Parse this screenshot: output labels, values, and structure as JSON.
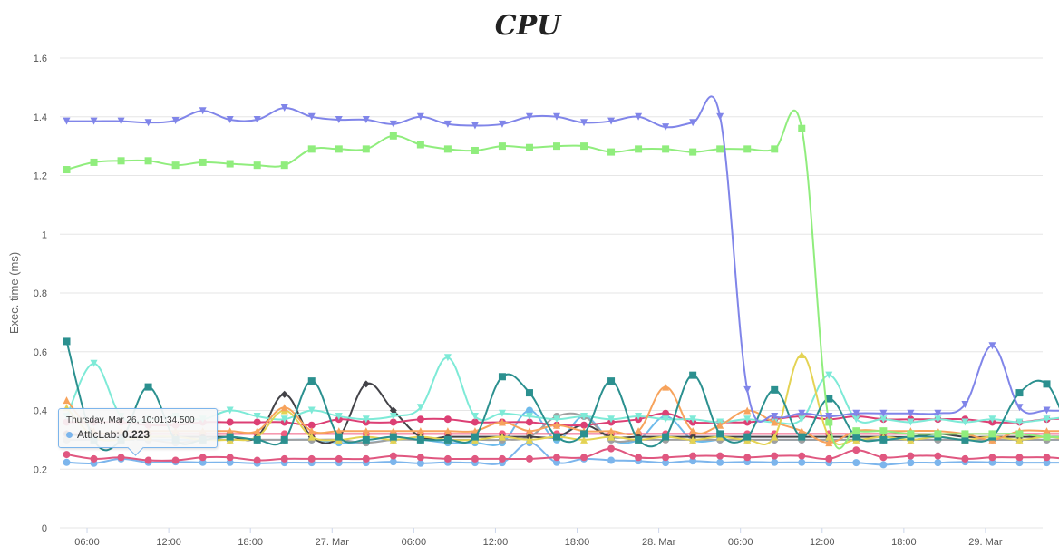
{
  "chart_data": {
    "type": "line",
    "title": "CPU",
    "ylabel": "Exec. time (ms)",
    "xlabel": "",
    "ylim": [
      0,
      1.6
    ],
    "yticks": [
      "0",
      "0.2",
      "0.4",
      "0.6",
      "0.8",
      "1",
      "1.2",
      "1.4",
      "1.6"
    ],
    "xticks": [
      "06:00",
      "12:00",
      "18:00",
      "27. Mar",
      "06:00",
      "12:00",
      "18:00",
      "28. Mar",
      "06:00",
      "12:00",
      "18:00",
      "29. Mar"
    ],
    "x_start_hour": 4.5,
    "x_step_hours": 2,
    "grid": true,
    "series": [
      {
        "color": "#8085e9",
        "marker": "triangle-down",
        "values": [
          1.385,
          1.385,
          1.385,
          1.38,
          1.387,
          1.42,
          1.39,
          1.39,
          1.43,
          1.4,
          1.39,
          1.39,
          1.375,
          1.4,
          1.375,
          1.37,
          1.375,
          1.4,
          1.4,
          1.38,
          1.385,
          1.4,
          1.365,
          1.38,
          1.4,
          0.47,
          0.38,
          0.39,
          0.38,
          0.39,
          0.39,
          0.39,
          0.39,
          0.42,
          0.62,
          0.41,
          0.4,
          0.4,
          0.4,
          0.4
        ]
      },
      {
        "color": "#90ed7d",
        "marker": "square",
        "values": [
          1.22,
          1.245,
          1.25,
          1.25,
          1.235,
          1.245,
          1.24,
          1.235,
          1.235,
          1.29,
          1.29,
          1.29,
          1.335,
          1.305,
          1.29,
          1.285,
          1.3,
          1.295,
          1.3,
          1.3,
          1.28,
          1.29,
          1.29,
          1.28,
          1.29,
          1.29,
          1.29,
          1.36,
          0.36,
          0.33,
          0.33,
          0.32,
          0.32,
          0.32,
          0.32,
          0.32,
          0.31,
          0.31,
          0.31,
          0.31
        ]
      },
      {
        "color": "#2b908f",
        "marker": "square",
        "values": [
          0.635,
          0.3,
          0.3,
          0.48,
          0.3,
          0.3,
          0.31,
          0.3,
          0.3,
          0.5,
          0.31,
          0.3,
          0.31,
          0.3,
          0.3,
          0.31,
          0.515,
          0.46,
          0.31,
          0.32,
          0.5,
          0.3,
          0.31,
          0.52,
          0.32,
          0.31,
          0.47,
          0.31,
          0.44,
          0.31,
          0.3,
          0.31,
          0.31,
          0.3,
          0.31,
          0.46,
          0.49,
          0.31,
          0.3,
          0.3
        ]
      },
      {
        "color": "#f7a35c",
        "marker": "triangle",
        "values": [
          0.435,
          0.33,
          0.33,
          0.33,
          0.33,
          0.33,
          0.33,
          0.33,
          0.41,
          0.33,
          0.33,
          0.33,
          0.33,
          0.33,
          0.33,
          0.33,
          0.36,
          0.33,
          0.35,
          0.33,
          0.33,
          0.33,
          0.48,
          0.33,
          0.35,
          0.4,
          0.36,
          0.33,
          0.29,
          0.33,
          0.33,
          0.33,
          0.33,
          0.32,
          0.3,
          0.33,
          0.33,
          0.33,
          0.33,
          0.46
        ]
      },
      {
        "color": "#e4d354",
        "marker": "triangle",
        "values": [
          0.41,
          0.31,
          0.3,
          0.31,
          0.31,
          0.3,
          0.3,
          0.31,
          0.4,
          0.31,
          0.3,
          0.31,
          0.3,
          0.31,
          0.3,
          0.3,
          0.31,
          0.3,
          0.31,
          0.3,
          0.31,
          0.3,
          0.31,
          0.3,
          0.31,
          0.3,
          0.31,
          0.59,
          0.31,
          0.3,
          0.31,
          0.3,
          0.31,
          0.3,
          0.31,
          0.3,
          0.31,
          0.3,
          0.31,
          0.3
        ]
      },
      {
        "color": "#7eead7",
        "marker": "triangle-down",
        "values": [
          0.38,
          0.56,
          0.38,
          0.37,
          0.38,
          0.37,
          0.4,
          0.38,
          0.37,
          0.4,
          0.38,
          0.37,
          0.38,
          0.41,
          0.58,
          0.38,
          0.39,
          0.38,
          0.37,
          0.38,
          0.37,
          0.38,
          0.37,
          0.37,
          0.36,
          0.37,
          0.36,
          0.37,
          0.52,
          0.37,
          0.37,
          0.36,
          0.37,
          0.36,
          0.37,
          0.36,
          0.37,
          0.38,
          0.39,
          0.4
        ]
      },
      {
        "color": "#dc3f74",
        "marker": "circle",
        "values": [
          0.36,
          0.36,
          0.36,
          0.35,
          0.35,
          0.36,
          0.36,
          0.36,
          0.36,
          0.35,
          0.37,
          0.36,
          0.36,
          0.37,
          0.37,
          0.36,
          0.36,
          0.36,
          0.35,
          0.35,
          0.36,
          0.37,
          0.39,
          0.36,
          0.36,
          0.36,
          0.37,
          0.38,
          0.37,
          0.38,
          0.37,
          0.37,
          0.37,
          0.37,
          0.36,
          0.36,
          0.37,
          0.37,
          0.36,
          0.35
        ]
      },
      {
        "color": "#434348",
        "marker": "diamond",
        "values": [
          0.32,
          0.31,
          0.31,
          0.31,
          0.31,
          0.31,
          0.31,
          0.31,
          0.455,
          0.31,
          0.31,
          0.49,
          0.4,
          0.31,
          0.31,
          0.31,
          0.31,
          0.31,
          0.31,
          0.35,
          0.31,
          0.31,
          0.31,
          0.31,
          0.31,
          0.31,
          0.31,
          0.31,
          0.31,
          0.31,
          0.31,
          0.31,
          0.32,
          0.31,
          0.31,
          0.31,
          0.31,
          0.31,
          0.31,
          0.31
        ]
      },
      {
        "color": "#a0a0a0",
        "marker": "circle",
        "values": [
          0.3,
          0.3,
          0.3,
          0.3,
          0.29,
          0.3,
          0.3,
          0.3,
          0.3,
          0.3,
          0.3,
          0.29,
          0.3,
          0.3,
          0.3,
          0.3,
          0.3,
          0.31,
          0.38,
          0.38,
          0.3,
          0.3,
          0.3,
          0.3,
          0.3,
          0.3,
          0.3,
          0.3,
          0.3,
          0.3,
          0.3,
          0.3,
          0.3,
          0.3,
          0.3,
          0.3,
          0.3,
          0.3,
          0.3,
          0.3
        ]
      },
      {
        "color": "#f15c80",
        "marker": "circle",
        "values": [
          0.32,
          0.32,
          0.32,
          0.32,
          0.32,
          0.32,
          0.32,
          0.32,
          0.32,
          0.32,
          0.32,
          0.32,
          0.32,
          0.32,
          0.32,
          0.32,
          0.32,
          0.32,
          0.32,
          0.32,
          0.32,
          0.32,
          0.32,
          0.32,
          0.32,
          0.32,
          0.32,
          0.32,
          0.32,
          0.32,
          0.32,
          0.32,
          0.32,
          0.32,
          0.32,
          0.32,
          0.32,
          0.32,
          0.32,
          0.32
        ]
      },
      {
        "color": "#6fbbeb",
        "marker": "circle",
        "values": [
          0.3,
          0.3,
          0.3,
          0.3,
          0.3,
          0.3,
          0.3,
          0.3,
          0.3,
          0.3,
          0.29,
          0.29,
          0.3,
          0.3,
          0.29,
          0.29,
          0.29,
          0.4,
          0.3,
          0.38,
          0.3,
          0.3,
          0.38,
          0.3,
          0.3,
          0.3,
          0.3,
          0.3,
          0.3,
          0.3,
          0.3,
          0.3,
          0.3,
          0.3,
          0.3,
          0.3,
          0.3,
          0.3,
          0.3,
          0.3
        ]
      },
      {
        "color": "#e05780",
        "marker": "circle",
        "values": [
          0.25,
          0.235,
          0.24,
          0.23,
          0.23,
          0.24,
          0.24,
          0.23,
          0.235,
          0.235,
          0.235,
          0.235,
          0.245,
          0.24,
          0.235,
          0.235,
          0.235,
          0.235,
          0.24,
          0.24,
          0.27,
          0.24,
          0.24,
          0.245,
          0.245,
          0.24,
          0.245,
          0.245,
          0.235,
          0.265,
          0.24,
          0.245,
          0.245,
          0.235,
          0.24,
          0.24,
          0.24,
          0.235,
          0.24,
          0.24
        ]
      },
      {
        "color": "#7cb5ec",
        "marker": "circle",
        "name": "AtticLab",
        "values": [
          0.223,
          0.22,
          0.235,
          0.223,
          0.225,
          0.223,
          0.223,
          0.22,
          0.222,
          0.222,
          0.222,
          0.222,
          0.225,
          0.22,
          0.223,
          0.222,
          0.222,
          0.29,
          0.223,
          0.235,
          0.23,
          0.228,
          0.222,
          0.228,
          0.223,
          0.225,
          0.223,
          0.223,
          0.222,
          0.222,
          0.215,
          0.222,
          0.222,
          0.225,
          0.223,
          0.222,
          0.222,
          0.222,
          0.222,
          0.223
        ]
      }
    ]
  },
  "tooltip": {
    "date": "Thursday, Mar 26, 10:01:34.500",
    "series": "AtticLab",
    "value": "0.223",
    "color": "#7cb5ec"
  }
}
